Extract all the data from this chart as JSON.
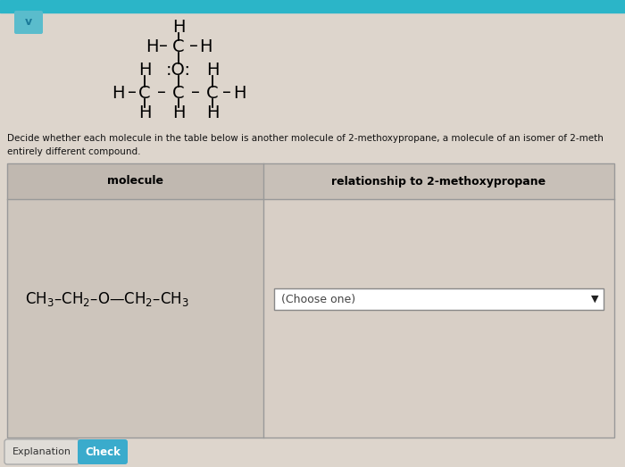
{
  "bg_top_color": "#2bb5c8",
  "bg_main_color": "#ddd5cc",
  "chevron": "v",
  "description_line1": "Decide whether each molecule in the table below is another molecule of 2-methoxypropane, a molecule of an isomer of 2-meth",
  "description_line2": "entirely different compound.",
  "table_header_left": "molecule",
  "table_header_right": "relationship to 2-methoxypropane",
  "dropdown_text": "(Choose one)",
  "button_explanation": "Explanation",
  "button_check": "Check",
  "table_bg_left": "#cdc5bc",
  "table_bg_right": "#d8cfc6",
  "header_bg_left": "#c0b8b0",
  "header_bg_right": "#c8c0b8",
  "table_border_color": "#999999",
  "text_color": "#111111",
  "button_bg": "#e0ddd8",
  "check_button_bg": "#3aabcc",
  "dropdown_bg": "#ffffff",
  "top_bar_height": 14,
  "chevron_box_color": "#5abccc",
  "chevron_color": "#1a7a99"
}
